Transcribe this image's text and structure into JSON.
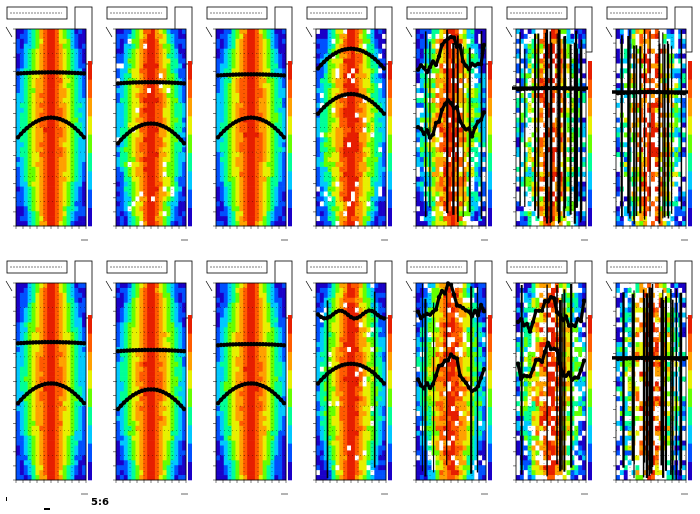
{
  "figure": {
    "label": "5:6",
    "rows": 2,
    "cols": 7
  },
  "colors": {
    "palette": [
      "#1a00c8",
      "#0050ff",
      "#00c8ff",
      "#00ff96",
      "#64ff00",
      "#e6f000",
      "#ffa000",
      "#ff5a00",
      "#e61e00"
    ],
    "marker": "#000000",
    "background": "#ffffff"
  },
  "chart_data": [
    {
      "type": "heatmap",
      "panel": "row1-col1",
      "noise": 0.05,
      "speckle": 0.0,
      "stripes": 0,
      "band_upper": 0.22,
      "band_lower": 0.47,
      "upper_curve": "flat",
      "lower_curve": "arch",
      "legend_box": true
    },
    {
      "type": "heatmap",
      "panel": "row1-col2",
      "noise": 0.12,
      "speckle": 0.04,
      "stripes": 0,
      "band_upper": 0.27,
      "band_lower": 0.5,
      "upper_curve": "flat",
      "lower_curve": "arch",
      "legend_box": true
    },
    {
      "type": "heatmap",
      "panel": "row1-col3",
      "noise": 0.06,
      "speckle": 0.0,
      "stripes": 0,
      "band_upper": 0.23,
      "band_lower": 0.47,
      "upper_curve": "flat",
      "lower_curve": "arch",
      "legend_box": true
    },
    {
      "type": "heatmap",
      "panel": "row1-col4",
      "noise": 0.15,
      "speckle": 0.06,
      "stripes": 0,
      "band_upper": 0.12,
      "band_lower": 0.35,
      "upper_curve": "arch",
      "lower_curve": "arch",
      "legend_box": true
    },
    {
      "type": "heatmap",
      "panel": "row1-col5",
      "noise": 0.3,
      "speckle": 0.15,
      "stripes": 10,
      "band_upper": 0.12,
      "band_lower": 0.45,
      "upper_curve": "wild",
      "lower_curve": "wild",
      "legend_box": true
    },
    {
      "type": "heatmap",
      "panel": "row1-col6",
      "noise": 0.4,
      "speckle": 0.35,
      "stripes": 22,
      "band_upper": 0.3,
      "band_lower": 0.3,
      "upper_curve": "flat",
      "lower_curve": "none",
      "legend_box": false
    },
    {
      "type": "heatmap",
      "panel": "row1-col7",
      "noise": 0.45,
      "speckle": 0.4,
      "stripes": 18,
      "band_upper": 0.32,
      "band_lower": 0.32,
      "upper_curve": "flat",
      "lower_curve": "none",
      "legend_box": false
    },
    {
      "type": "heatmap",
      "panel": "row2-col1",
      "noise": 0.05,
      "speckle": 0.0,
      "stripes": 0,
      "band_upper": 0.3,
      "band_lower": 0.53,
      "upper_curve": "flat",
      "lower_curve": "arch",
      "legend_box": true
    },
    {
      "type": "heatmap",
      "panel": "row2-col2",
      "noise": 0.06,
      "speckle": 0.0,
      "stripes": 0,
      "band_upper": 0.34,
      "band_lower": 0.56,
      "upper_curve": "flat",
      "lower_curve": "arch",
      "legend_box": true
    },
    {
      "type": "heatmap",
      "panel": "row2-col3",
      "noise": 0.06,
      "speckle": 0.0,
      "stripes": 0,
      "band_upper": 0.31,
      "band_lower": 0.53,
      "upper_curve": "flat",
      "lower_curve": "arch",
      "legend_box": true
    },
    {
      "type": "heatmap",
      "panel": "row2-col4",
      "noise": 0.12,
      "speckle": 0.03,
      "stripes": 2,
      "band_upper": 0.16,
      "band_lower": 0.43,
      "upper_curve": "wavy",
      "lower_curve": "arch",
      "legend_box": true
    },
    {
      "type": "heatmap",
      "panel": "row2-col5",
      "noise": 0.25,
      "speckle": 0.1,
      "stripes": 6,
      "band_upper": 0.1,
      "band_lower": 0.45,
      "upper_curve": "wild",
      "lower_curve": "wild",
      "legend_box": true
    },
    {
      "type": "heatmap",
      "panel": "row2-col6",
      "noise": 0.35,
      "speckle": 0.3,
      "stripes": 8,
      "band_upper": 0.15,
      "band_lower": 0.4,
      "upper_curve": "wild",
      "lower_curve": "wild",
      "legend_box": true
    },
    {
      "type": "heatmap",
      "panel": "row2-col7",
      "noise": 0.4,
      "speckle": 0.4,
      "stripes": 20,
      "band_upper": 0.38,
      "band_lower": 0.38,
      "upper_curve": "flat",
      "lower_curve": "none",
      "legend_box": true
    }
  ]
}
